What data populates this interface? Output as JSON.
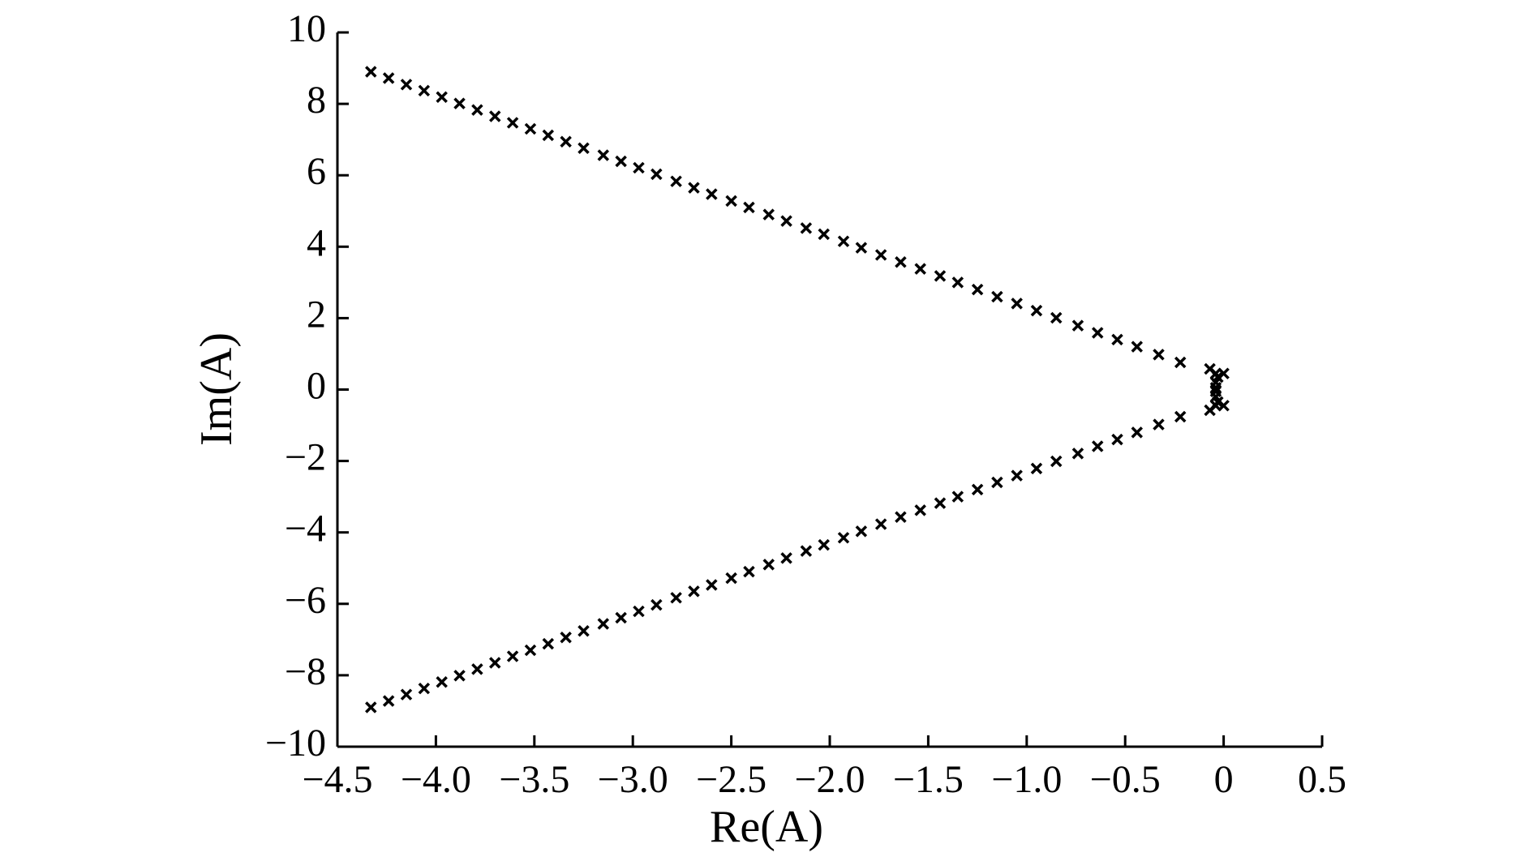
{
  "chart_data": {
    "type": "scatter",
    "xlabel": "Re(A)",
    "ylabel": "Im(A)",
    "color": "#000000",
    "marker": "x",
    "x": [
      -4.33,
      -4.24,
      -4.15,
      -4.06,
      -3.97,
      -3.88,
      -3.79,
      -3.7,
      -3.61,
      -3.52,
      -3.43,
      -3.34,
      -3.25,
      -3.15,
      -3.06,
      -2.97,
      -2.88,
      -2.78,
      -2.69,
      -2.6,
      -2.5,
      -2.41,
      -2.31,
      -2.22,
      -2.12,
      -2.03,
      -1.93,
      -1.84,
      -1.74,
      -1.64,
      -1.54,
      -1.44,
      -1.35,
      -1.25,
      -1.15,
      -1.05,
      -0.95,
      -0.85,
      -0.74,
      -0.64,
      -0.54,
      -0.44,
      -0.33,
      -0.22,
      -0.07,
      -0.04,
      0,
      -0.03,
      -0.04,
      -0.04,
      -4.33,
      -4.24,
      -4.15,
      -4.06,
      -3.97,
      -3.88,
      -3.79,
      -3.7,
      -3.61,
      -3.52,
      -3.43,
      -3.34,
      -3.25,
      -3.15,
      -3.06,
      -2.97,
      -2.88,
      -2.78,
      -2.69,
      -2.6,
      -2.5,
      -2.41,
      -2.31,
      -2.22,
      -2.12,
      -2.03,
      -1.93,
      -1.84,
      -1.74,
      -1.64,
      -1.54,
      -1.44,
      -1.35,
      -1.25,
      -1.15,
      -1.05,
      -0.95,
      -0.85,
      -0.74,
      -0.64,
      -0.54,
      -0.44,
      -0.33,
      -0.22,
      -0.07,
      -0.04,
      0,
      -0.03,
      -0.04,
      -0.04
    ],
    "y": [
      8.9,
      8.72,
      8.54,
      8.37,
      8.19,
      8.01,
      7.83,
      7.65,
      7.47,
      7.3,
      7.12,
      6.94,
      6.76,
      6.56,
      6.39,
      6.21,
      6.03,
      5.83,
      5.65,
      5.47,
      5.28,
      5.1,
      4.9,
      4.72,
      4.52,
      4.35,
      4.15,
      3.97,
      3.77,
      3.57,
      3.38,
      3.18,
      3.0,
      2.8,
      2.6,
      2.41,
      2.21,
      2.01,
      1.79,
      1.59,
      1.4,
      1.2,
      0.98,
      0.76,
      0.58,
      0.45,
      0.45,
      0.35,
      0.2,
      0.05,
      -8.9,
      -8.72,
      -8.54,
      -8.37,
      -8.19,
      -8.01,
      -7.83,
      -7.65,
      -7.47,
      -7.3,
      -7.12,
      -6.94,
      -6.76,
      -6.56,
      -6.39,
      -6.21,
      -6.03,
      -5.83,
      -5.65,
      -5.47,
      -5.28,
      -5.1,
      -4.9,
      -4.72,
      -4.52,
      -4.35,
      -4.15,
      -3.97,
      -3.77,
      -3.57,
      -3.38,
      -3.18,
      -3.0,
      -2.8,
      -2.6,
      -2.41,
      -2.21,
      -2.01,
      -1.79,
      -1.59,
      -1.4,
      -1.2,
      -0.98,
      -0.76,
      -0.58,
      -0.45,
      -0.45,
      -0.35,
      -0.2,
      -0.05
    ],
    "xlim": [
      -4.5,
      0.5
    ],
    "xticks": [
      {
        "value": -4.5,
        "label": "−4.5"
      },
      {
        "value": -4.0,
        "label": "−4.0"
      },
      {
        "value": -3.5,
        "label": "−3.5"
      },
      {
        "value": -3.0,
        "label": "−3.0"
      },
      {
        "value": -2.5,
        "label": "−2.5"
      },
      {
        "value": -2.0,
        "label": "−2.0"
      },
      {
        "value": -1.5,
        "label": "−1.5"
      },
      {
        "value": -1.0,
        "label": "−1.0"
      },
      {
        "value": -0.5,
        "label": "−0.5"
      },
      0,
      0.5
    ],
    "ylim": [
      -10,
      10
    ],
    "yticks": [
      {
        "value": -10,
        "label": "−10"
      },
      {
        "value": -8,
        "label": "−8"
      },
      {
        "value": -6,
        "label": "−6"
      },
      {
        "value": -4,
        "label": "−4"
      },
      {
        "value": -2,
        "label": "−2"
      },
      0,
      2,
      4,
      6,
      8,
      10
    ]
  }
}
